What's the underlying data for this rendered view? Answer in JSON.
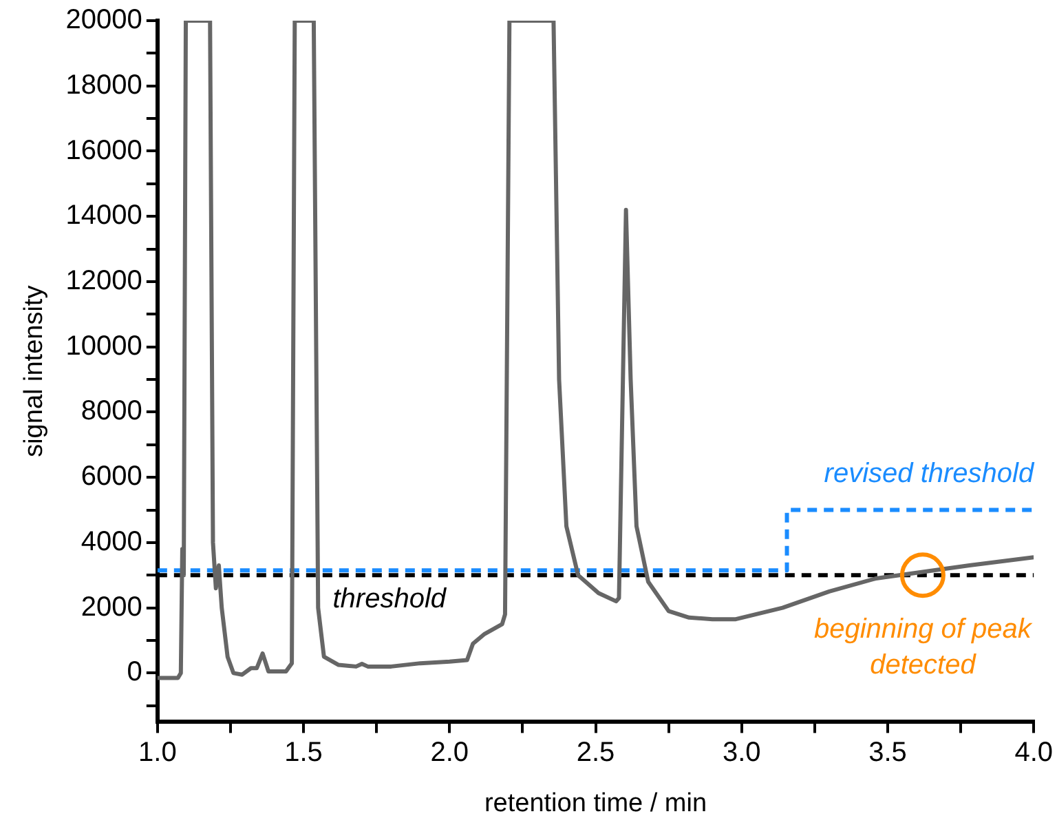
{
  "chart_data": {
    "type": "line",
    "xlabel": "retention time / min",
    "ylabel": "signal intensity",
    "xlim": [
      1.0,
      4.0
    ],
    "ylim": [
      -1500,
      20000
    ],
    "xticks": [
      {
        "value": 1,
        "label": "1.0"
      },
      {
        "value": 1.25,
        "label": null
      },
      {
        "value": 1.5,
        "label": "1.5"
      },
      {
        "value": 1.75,
        "label": null
      },
      {
        "value": 2,
        "label": "2.0"
      },
      {
        "value": 2.25,
        "label": null
      },
      {
        "value": 2.5,
        "label": "2.5"
      },
      {
        "value": 2.75,
        "label": null
      },
      {
        "value": 3,
        "label": "3.0"
      },
      {
        "value": 3.25,
        "label": null
      },
      {
        "value": 3.5,
        "label": "3.5"
      },
      {
        "value": 3.75,
        "label": null
      },
      {
        "value": 4,
        "label": "4.0"
      }
    ],
    "yticks": [
      {
        "value": -1000,
        "label": null
      },
      0,
      {
        "value": 1000,
        "label": null
      },
      2000,
      {
        "value": 3000,
        "label": null
      },
      4000,
      {
        "value": 5000,
        "label": null
      },
      6000,
      {
        "value": 7000,
        "label": null
      },
      8000,
      {
        "value": 9000,
        "label": null
      },
      10000,
      {
        "value": 11000,
        "label": null
      },
      12000,
      {
        "value": 13000,
        "label": null
      },
      14000,
      {
        "value": 15000,
        "label": null
      },
      16000,
      {
        "value": 17000,
        "label": null
      },
      18000,
      {
        "value": 19000,
        "label": null
      },
      20000
    ],
    "grid": false,
    "legend": false,
    "marker": "none",
    "series": [
      {
        "color": "#666666",
        "line_style": "solid",
        "x": [
          1.0,
          1.07,
          1.08,
          1.085,
          1.09,
          1.097,
          1.18,
          1.19,
          1.2,
          1.21,
          1.22,
          1.24,
          1.26,
          1.29,
          1.32,
          1.34,
          1.36,
          1.38,
          1.4,
          1.44,
          1.46,
          1.47,
          1.535,
          1.55,
          1.57,
          1.62,
          1.68,
          1.7,
          1.72,
          1.8,
          1.9,
          2.0,
          2.06,
          2.08,
          2.12,
          2.18,
          2.19,
          2.205,
          2.356,
          2.375,
          2.4,
          2.44,
          2.51,
          2.57,
          2.58,
          2.604,
          2.62,
          2.64,
          2.68,
          2.75,
          2.82,
          2.9,
          2.98,
          3.14,
          3.3,
          3.46,
          3.62,
          3.78,
          4.0
        ],
        "values": [
          -150,
          -150,
          0,
          3800,
          3000,
          20000,
          20000,
          4000,
          2600,
          3300,
          2000,
          500,
          0,
          -50,
          150,
          150,
          600,
          50,
          50,
          50,
          300,
          20000,
          20000,
          2000,
          500,
          250,
          200,
          280,
          200,
          200,
          300,
          350,
          400,
          900,
          1200,
          1500,
          1800,
          20000,
          20000,
          9000,
          4500,
          3000,
          2450,
          2200,
          2300,
          14200,
          9000,
          4500,
          2800,
          1900,
          1700,
          1650,
          1650,
          2000,
          2500,
          2900,
          3100,
          3300,
          3550
        ]
      },
      {
        "type": "step",
        "name": "revised threshold",
        "color": "#1a8cff",
        "line_style": "dashed",
        "x": [
          1.0,
          3.155,
          4.0
        ],
        "values": [
          3150,
          5000,
          5000
        ]
      }
    ],
    "ref_lines": [
      {
        "axis": "y",
        "value": 3000,
        "label": "threshold",
        "color": "#000000",
        "line_style": "dashed"
      }
    ],
    "annotations": [
      {
        "text": "beginning of peak detected",
        "x": 3.62,
        "y": 3000
      }
    ]
  }
}
